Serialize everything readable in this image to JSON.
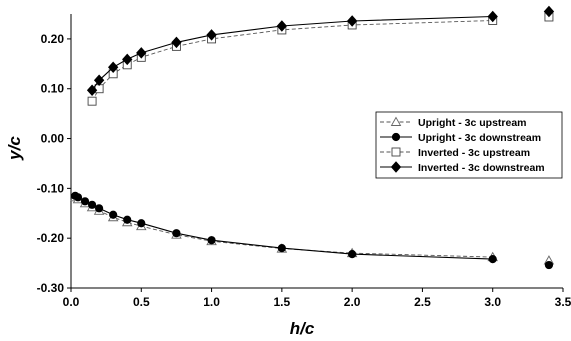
{
  "chart_data": {
    "type": "line",
    "title": "",
    "xlabel": "h/c",
    "ylabel": "y/c",
    "xlim": [
      0,
      3.5
    ],
    "ylim": [
      -0.3,
      0.25
    ],
    "x_ticks": [
      "0.0",
      "0.5",
      "1.0",
      "1.5",
      "2.0",
      "2.5",
      "3.0",
      "3.5"
    ],
    "y_ticks": [
      "0.20",
      "0.10",
      "0.00",
      "-0.10",
      "-0.20",
      "-0.30"
    ],
    "grid": false,
    "legend_position": "right",
    "series": [
      {
        "name": "Upright - 3c upstream",
        "marker": "triangle-open",
        "line": "dashed",
        "x": [
          0.03,
          0.05,
          0.1,
          0.15,
          0.2,
          0.3,
          0.4,
          0.5,
          0.75,
          1.0,
          1.5,
          2.0,
          3.0
        ],
        "y": [
          -0.118,
          -0.122,
          -0.13,
          -0.138,
          -0.145,
          -0.158,
          -0.168,
          -0.176,
          -0.193,
          -0.206,
          -0.221,
          -0.23,
          -0.238
        ],
        "extra_point": [
          3.4,
          -0.245
        ]
      },
      {
        "name": "Upright - 3c downstream",
        "marker": "circle-filled",
        "line": "solid",
        "x": [
          0.03,
          0.05,
          0.1,
          0.15,
          0.2,
          0.3,
          0.4,
          0.5,
          0.75,
          1.0,
          1.5,
          2.0,
          3.0
        ],
        "y": [
          -0.115,
          -0.118,
          -0.126,
          -0.133,
          -0.14,
          -0.153,
          -0.163,
          -0.17,
          -0.19,
          -0.204,
          -0.22,
          -0.232,
          -0.242
        ],
        "extra_point": [
          3.4,
          -0.254
        ]
      },
      {
        "name": "Inverted - 3c upstream",
        "marker": "square-open",
        "line": "dashed",
        "x": [
          0.15,
          0.2,
          0.3,
          0.4,
          0.5,
          0.75,
          1.0,
          1.5,
          2.0,
          3.0
        ],
        "y": [
          0.075,
          0.1,
          0.13,
          0.148,
          0.163,
          0.185,
          0.2,
          0.218,
          0.228,
          0.237
        ],
        "extra_point": [
          3.4,
          0.244
        ]
      },
      {
        "name": "Inverted - 3c downstream",
        "marker": "diamond-filled",
        "line": "solid",
        "x": [
          0.15,
          0.2,
          0.3,
          0.4,
          0.5,
          0.75,
          1.0,
          1.5,
          2.0,
          3.0
        ],
        "y": [
          0.097,
          0.117,
          0.143,
          0.159,
          0.172,
          0.193,
          0.208,
          0.226,
          0.236,
          0.245
        ],
        "extra_point": [
          3.4,
          0.255
        ]
      }
    ]
  }
}
